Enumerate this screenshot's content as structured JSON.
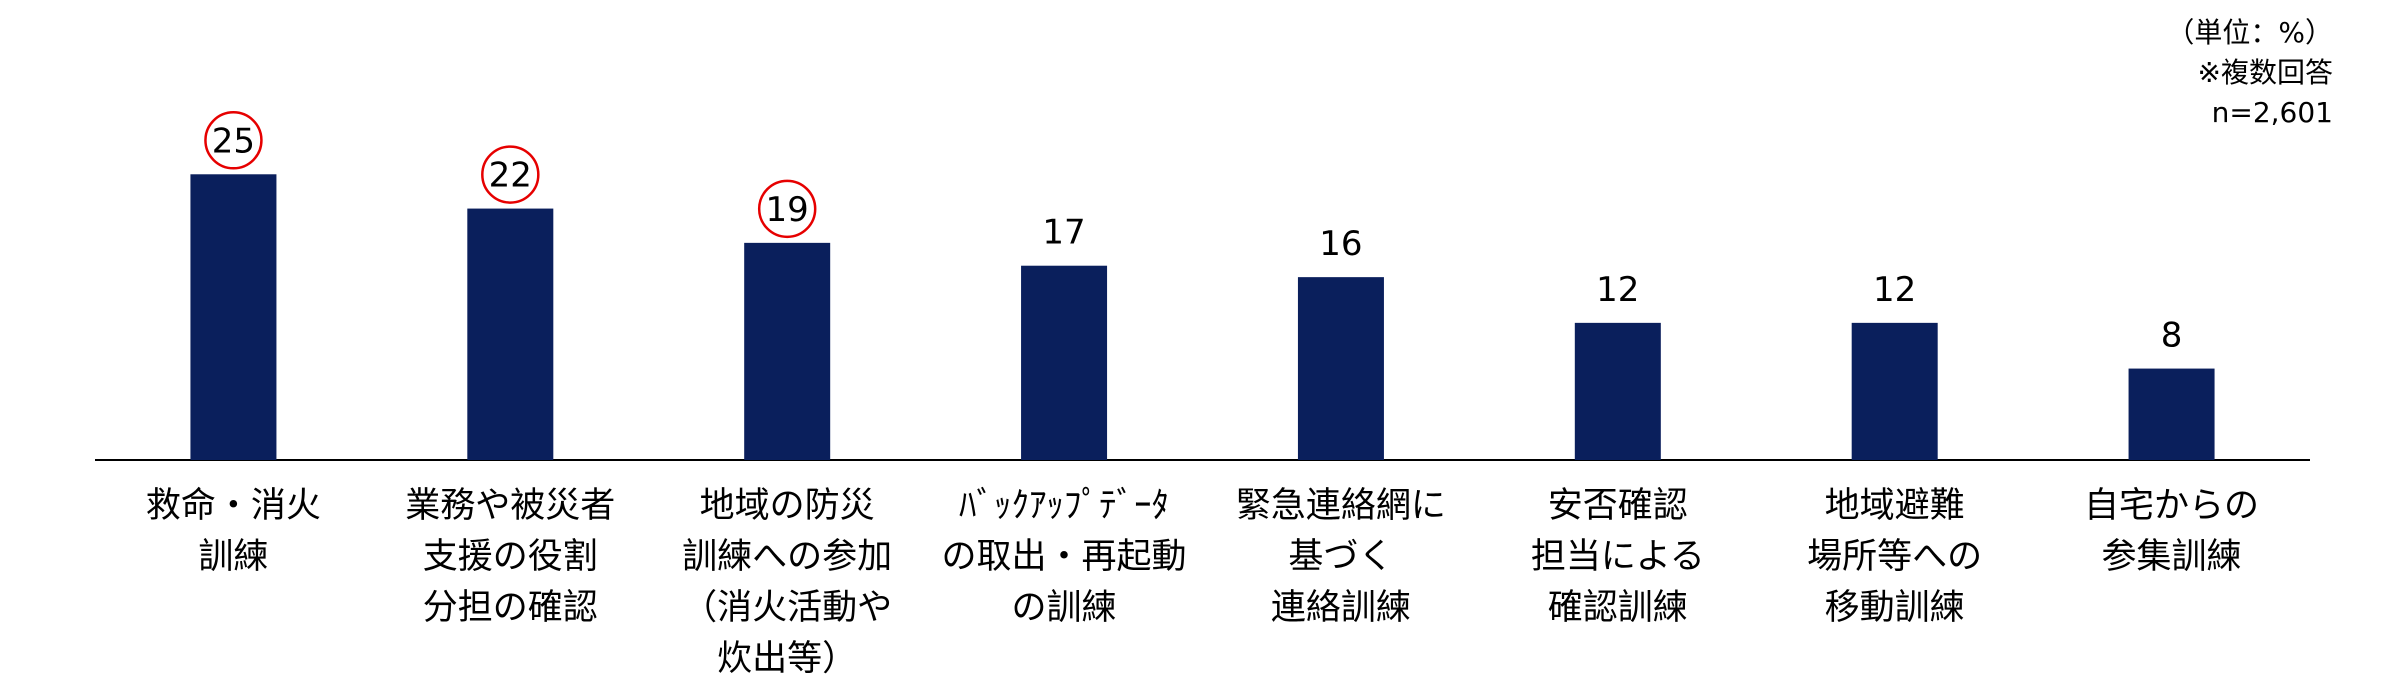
{
  "notes": {
    "unit": "（単位：%）",
    "multiple_answers": "※複数回答",
    "sample_size": "n=2,601"
  },
  "colors": {
    "bar": "#0a1f5c",
    "highlight_circle": "#e60000"
  },
  "chart_data": {
    "type": "bar",
    "categories": [
      [
        "救命・消火",
        "訓練"
      ],
      [
        "業務や被災者",
        "支援の役割",
        "分担の確認"
      ],
      [
        "地域の防災",
        "訓練への参加",
        "（消火活動や",
        "炊出等）"
      ],
      [
        "ﾊﾞｯｸｱｯﾌﾟﾃﾞｰﾀ",
        "の取出・再起動",
        "の訓練"
      ],
      [
        "緊急連絡網に",
        "基づく",
        "連絡訓練"
      ],
      [
        "安否確認",
        "担当による",
        "確認訓練"
      ],
      [
        "地域避難",
        "場所等への",
        "移動訓練"
      ],
      [
        "自宅からの",
        "参集訓練"
      ]
    ],
    "values": [
      25,
      22,
      19,
      17,
      16,
      12,
      12,
      8
    ],
    "highlighted": [
      true,
      true,
      true,
      false,
      false,
      false,
      false,
      false
    ],
    "ylim": [
      0,
      28
    ],
    "grid": false,
    "legend": "none"
  }
}
